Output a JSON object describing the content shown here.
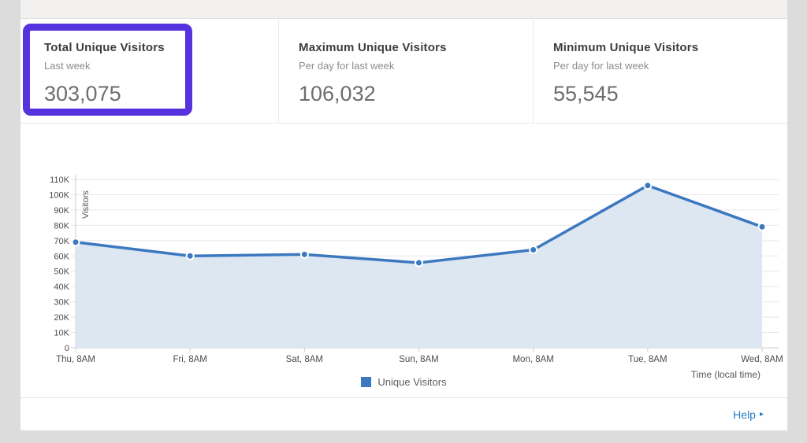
{
  "cards": [
    {
      "title": "Total Unique Visitors",
      "subtitle": "Last week",
      "value": "303,075",
      "highlighted": true
    },
    {
      "title": "Maximum Unique Visitors",
      "subtitle": "Per day for last week",
      "value": "106,032",
      "highlighted": false
    },
    {
      "title": "Minimum Unique Visitors",
      "subtitle": "Per day for last week",
      "value": "55,545",
      "highlighted": false
    }
  ],
  "chart_data": {
    "type": "area",
    "x": [
      "Thu, 8AM",
      "Fri, 8AM",
      "Sat, 8AM",
      "Sun, 8AM",
      "Mon, 8AM",
      "Tue, 8AM",
      "Wed, 8AM"
    ],
    "series": [
      {
        "name": "Unique Visitors",
        "values": [
          69000,
          60000,
          61000,
          55545,
          64000,
          106032,
          79000
        ]
      }
    ],
    "title": "",
    "xlabel": "Time (local time)",
    "ylabel": "Visitors",
    "ylim": [
      0,
      110000
    ],
    "ytick_step": 10000,
    "ytick_labels": [
      "0",
      "10K",
      "20K",
      "30K",
      "40K",
      "50K",
      "60K",
      "70K",
      "80K",
      "90K",
      "100K",
      "110K"
    ],
    "grid": true,
    "legend": {
      "position": "bottom",
      "entries": [
        "Unique Visitors"
      ]
    }
  },
  "colors": {
    "line": "#3c78bf",
    "area_fill": "#dde7f2",
    "grid": "#e7e7e7",
    "axis": "#cccccc",
    "tick_text": "#4c4c4c",
    "axis_title": "#555555",
    "highlight": "#5733dd",
    "help_link": "#2b7cc0"
  },
  "footer": {
    "help_label": "Help",
    "help_arrow": "▸"
  }
}
